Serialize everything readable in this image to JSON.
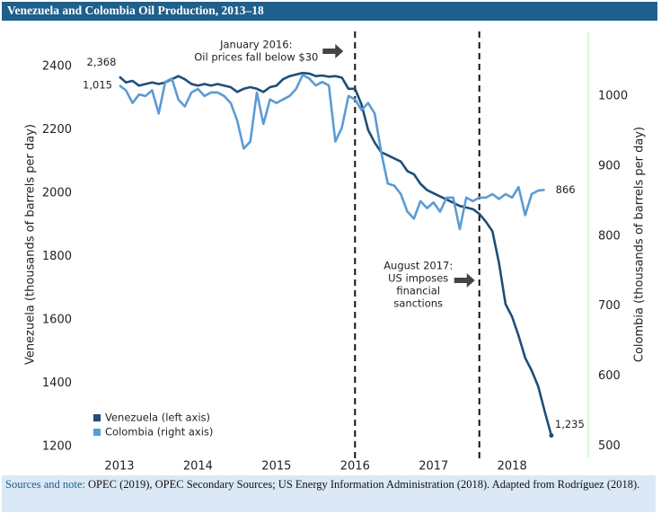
{
  "chart_data": {
    "type": "line",
    "title": "Venezuela and Colombia Oil Production, 2013–18",
    "y_label": "Venezuela (thousands of barrels per day)",
    "y2_label": "Colombia (thousands of barrels per day)",
    "x": [
      2013,
      2013.083,
      2013.167,
      2013.25,
      2013.333,
      2013.417,
      2013.5,
      2013.583,
      2013.667,
      2013.75,
      2013.833,
      2013.917,
      2014,
      2014.083,
      2014.167,
      2014.25,
      2014.333,
      2014.417,
      2014.5,
      2014.583,
      2014.667,
      2014.75,
      2014.833,
      2014.917,
      2015,
      2015.083,
      2015.167,
      2015.25,
      2015.333,
      2015.417,
      2015.5,
      2015.583,
      2015.667,
      2015.75,
      2015.833,
      2015.917,
      2016,
      2016.083,
      2016.167,
      2016.25,
      2016.333,
      2016.417,
      2016.5,
      2016.583,
      2016.667,
      2016.75,
      2016.833,
      2016.917,
      2017,
      2017.083,
      2017.167,
      2017.25,
      2017.333,
      2017.417,
      2017.5,
      2017.583,
      2017.667,
      2017.75,
      2017.833,
      2017.917,
      2018,
      2018.083,
      2018.167,
      2018.25,
      2018.333,
      2018.417,
      2018.5
    ],
    "series": [
      {
        "name": "Venezuela (left axis)",
        "color": "#1f4e79",
        "axis": "y",
        "values": [
          2368,
          2350,
          2355,
          2340,
          2345,
          2350,
          2345,
          2350,
          2360,
          2370,
          2360,
          2345,
          2340,
          2345,
          2340,
          2345,
          2340,
          2335,
          2320,
          2330,
          2335,
          2330,
          2320,
          2335,
          2340,
          2360,
          2370,
          2375,
          2380,
          2378,
          2370,
          2372,
          2368,
          2370,
          2365,
          2330,
          2330,
          2280,
          2200,
          2160,
          2130,
          2120,
          2110,
          2100,
          2070,
          2060,
          2030,
          2010,
          2000,
          1990,
          1980,
          1970,
          1960,
          1955,
          1950,
          1935,
          1910,
          1880,
          1780,
          1650,
          1610,
          1550,
          1480,
          1440,
          1390,
          1310,
          1235
        ],
        "value_labels": [
          "2,368",
          null,
          null,
          null,
          null,
          null,
          null,
          null,
          null,
          null,
          null,
          null,
          null,
          null,
          null,
          null,
          null,
          null,
          null,
          null,
          null,
          null,
          null,
          null,
          null,
          null,
          null,
          null,
          null,
          null,
          null,
          null,
          null,
          null,
          null,
          null,
          null,
          null,
          null,
          null,
          null,
          null,
          null,
          null,
          null,
          null,
          null,
          null,
          null,
          null,
          null,
          null,
          null,
          null,
          null,
          null,
          null,
          null,
          null,
          null,
          null,
          null,
          null,
          null,
          null,
          null,
          "1,235"
        ]
      },
      {
        "name": "Colombia (right axis)",
        "color": "#5b9bd5",
        "axis": "y2",
        "values": [
          1015,
          1008,
          990,
          1002,
          1000,
          1008,
          975,
          1020,
          1025,
          995,
          985,
          1005,
          1010,
          1000,
          1005,
          1005,
          1000,
          990,
          965,
          925,
          935,
          1005,
          960,
          995,
          990,
          995,
          1000,
          1010,
          1030,
          1025,
          1015,
          1020,
          1015,
          935,
          955,
          1000,
          995,
          980,
          990,
          975,
          920,
          875,
          872,
          860,
          835,
          825,
          850,
          840,
          848,
          835,
          855,
          855,
          810,
          855,
          850,
          855,
          855,
          860,
          853,
          860,
          855,
          870,
          830,
          860,
          865,
          866,
          null
        ],
        "value_labels": [
          "1,015",
          null,
          null,
          null,
          null,
          null,
          null,
          null,
          null,
          null,
          null,
          null,
          null,
          null,
          null,
          null,
          null,
          null,
          null,
          null,
          null,
          null,
          null,
          null,
          null,
          null,
          null,
          null,
          null,
          null,
          null,
          null,
          null,
          null,
          null,
          null,
          null,
          null,
          null,
          null,
          null,
          null,
          null,
          null,
          null,
          null,
          null,
          null,
          null,
          null,
          null,
          null,
          null,
          null,
          null,
          null,
          null,
          null,
          null,
          null,
          null,
          null,
          null,
          null,
          null,
          "866",
          null
        ]
      }
    ],
    "xlim": [
      2012.6,
      2018.97
    ],
    "xticks": [
      2013,
      2014,
      2015,
      2016,
      2017,
      2018
    ],
    "ylim": [
      1163,
      2511
    ],
    "yticks": [
      1200,
      1400,
      1600,
      1800,
      2000,
      2200,
      2400
    ],
    "y2lim": [
      483,
      1092
    ],
    "y2ticks": [
      500,
      600,
      700,
      800,
      900,
      1000
    ],
    "legend": "lower left",
    "annotations": [
      {
        "x": 2016,
        "text": [
          "January 2016:",
          "Oil prices fall below $30"
        ]
      },
      {
        "x": 2017.583,
        "text": [
          "August 2017:",
          "US imposes",
          "financial",
          "sanctions"
        ]
      }
    ]
  },
  "footer": {
    "label": "Sources and note:",
    "text": "OPEC (2019), OPEC Secondary Sources; US Energy Information Administration (2018). Adapted from Rodríguez (2018)."
  }
}
